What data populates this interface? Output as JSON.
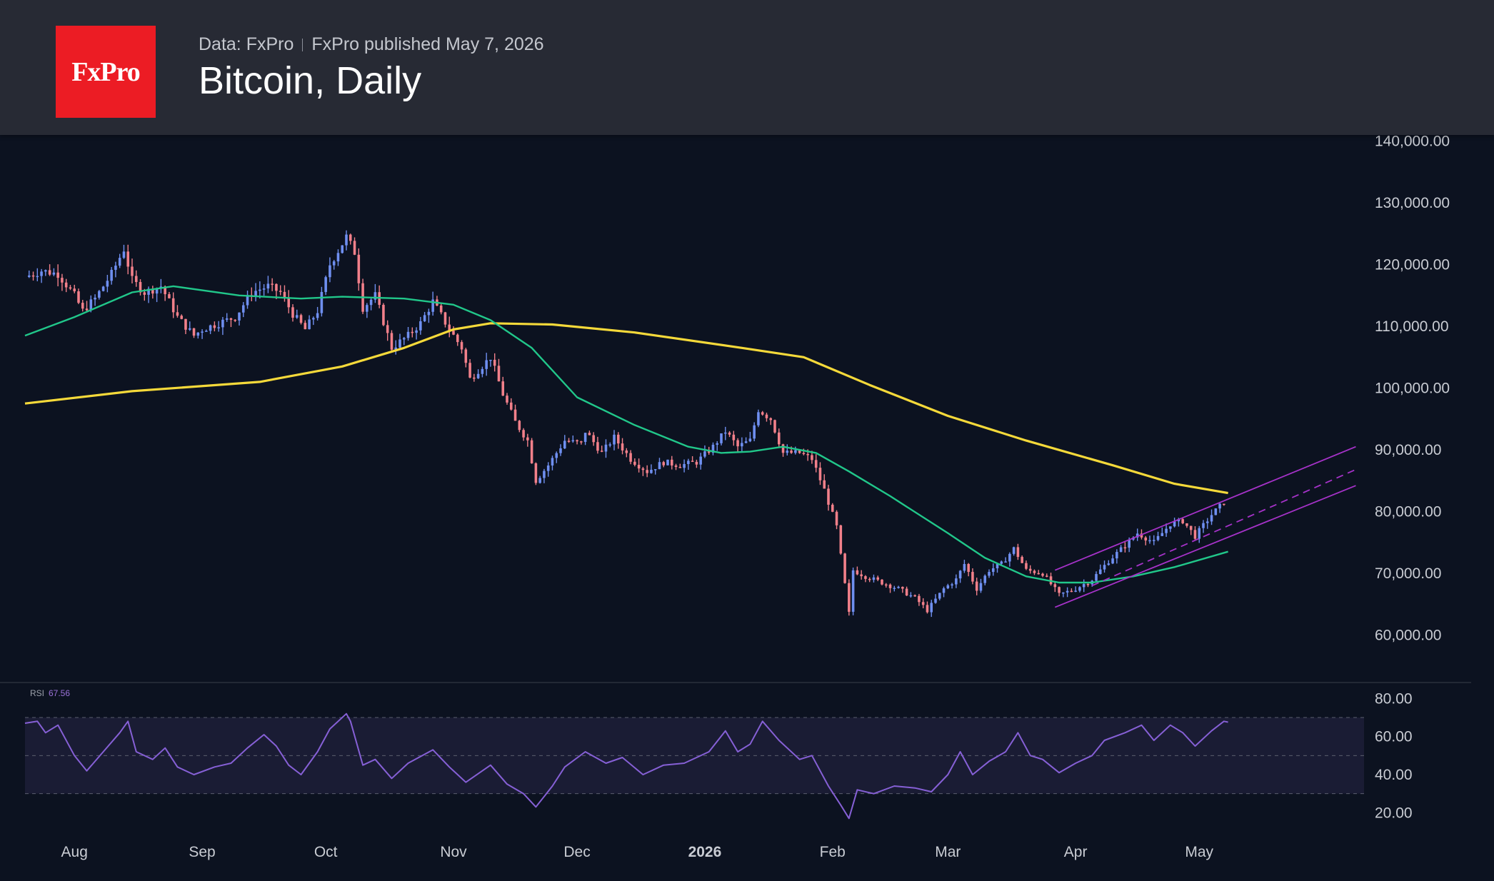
{
  "header": {
    "source": "Data: FxPro",
    "published": "FxPro published May 7, 2026",
    "title": "Bitcoin, Daily",
    "logo_text": "FxPro",
    "logo_color": "#ec1c24"
  },
  "chart_data": [
    {
      "type": "candlestick",
      "title": "Bitcoin, Daily",
      "x_range": [
        "2025-07-20",
        "2026-06-10"
      ],
      "ylim": [
        53000,
        141000
      ],
      "y_ticks": [
        "60,000.00",
        "70,000.00",
        "80,000.00",
        "90,000.00",
        "100,000.00",
        "110,000.00",
        "120,000.00",
        "130,000.00",
        "140,000.00"
      ],
      "y_tick_values": [
        60000,
        70000,
        80000,
        90000,
        100000,
        110000,
        120000,
        130000,
        140000
      ],
      "x_ticks": [
        {
          "label": "Aug",
          "date": "2025-08-01"
        },
        {
          "label": "Sep",
          "date": "2025-09-01"
        },
        {
          "label": "Oct",
          "date": "2025-10-01"
        },
        {
          "label": "Nov",
          "date": "2025-11-01"
        },
        {
          "label": "Dec",
          "date": "2025-12-01"
        },
        {
          "label": "2026",
          "date": "2026-01-01",
          "bold": true
        },
        {
          "label": "Feb",
          "date": "2026-02-01"
        },
        {
          "label": "Mar",
          "date": "2026-03-01"
        },
        {
          "label": "Apr",
          "date": "2026-04-01"
        },
        {
          "label": "May",
          "date": "2026-05-01"
        }
      ],
      "colors": {
        "up": "#6f8ff0",
        "down": "#f2808a",
        "ma_fast": "#21c78a",
        "ma_slow": "#f5d93a",
        "channel": "#a632c9"
      },
      "close_anchors": [
        [
          "2025-07-20",
          118000
        ],
        [
          "2025-07-24",
          119000
        ],
        [
          "2025-07-28",
          118500
        ],
        [
          "2025-08-01",
          115000
        ],
        [
          "2025-08-03",
          112500
        ],
        [
          "2025-08-06",
          114500
        ],
        [
          "2025-08-10",
          118500
        ],
        [
          "2025-08-13",
          122500
        ],
        [
          "2025-08-15",
          117500
        ],
        [
          "2025-08-18",
          115500
        ],
        [
          "2025-08-22",
          116500
        ],
        [
          "2025-08-26",
          111500
        ],
        [
          "2025-08-30",
          108500
        ],
        [
          "2025-09-01",
          109500
        ],
        [
          "2025-09-05",
          110500
        ],
        [
          "2025-09-09",
          111500
        ],
        [
          "2025-09-13",
          115500
        ],
        [
          "2025-09-17",
          116500
        ],
        [
          "2025-09-20",
          115500
        ],
        [
          "2025-09-23",
          112000
        ],
        [
          "2025-09-26",
          109500
        ],
        [
          "2025-09-29",
          112500
        ],
        [
          "2025-10-02",
          120000
        ],
        [
          "2025-10-06",
          124500
        ],
        [
          "2025-10-08",
          122000
        ],
        [
          "2025-10-10",
          113000
        ],
        [
          "2025-10-13",
          115000
        ],
        [
          "2025-10-17",
          106500
        ],
        [
          "2025-10-21",
          108500
        ],
        [
          "2025-10-24",
          110500
        ],
        [
          "2025-10-27",
          114000
        ],
        [
          "2025-10-31",
          109500
        ],
        [
          "2025-11-03",
          106500
        ],
        [
          "2025-11-05",
          101500
        ],
        [
          "2025-11-10",
          105000
        ],
        [
          "2025-11-13",
          99000
        ],
        [
          "2025-11-16",
          94500
        ],
        [
          "2025-11-19",
          91500
        ],
        [
          "2025-11-21",
          85000
        ],
        [
          "2025-11-24",
          87500
        ],
        [
          "2025-11-28",
          91500
        ],
        [
          "2025-12-02",
          91000
        ],
        [
          "2025-12-03",
          93000
        ],
        [
          "2025-12-07",
          89500
        ],
        [
          "2025-12-10",
          92000
        ],
        [
          "2025-12-14",
          88500
        ],
        [
          "2025-12-18",
          86500
        ],
        [
          "2025-12-22",
          88000
        ],
        [
          "2025-12-26",
          87500
        ],
        [
          "2025-12-30",
          88000
        ],
        [
          "2026-01-03",
          90500
        ],
        [
          "2026-01-06",
          93000
        ],
        [
          "2026-01-09",
          90500
        ],
        [
          "2026-01-12",
          91500
        ],
        [
          "2026-01-14",
          96500
        ],
        [
          "2026-01-17",
          95000
        ],
        [
          "2026-01-20",
          89500
        ],
        [
          "2026-01-24",
          89500
        ],
        [
          "2026-01-27",
          88500
        ],
        [
          "2026-01-30",
          83500
        ],
        [
          "2026-02-02",
          77500
        ],
        [
          "2026-02-05",
          63500
        ],
        [
          "2026-02-06",
          70500
        ],
        [
          "2026-02-09",
          69500
        ],
        [
          "2026-02-13",
          68500
        ],
        [
          "2026-02-17",
          67500
        ],
        [
          "2026-02-21",
          66000
        ],
        [
          "2026-02-24",
          64000
        ],
        [
          "2026-02-28",
          67500
        ],
        [
          "2026-03-03",
          69000
        ],
        [
          "2026-03-05",
          71500
        ],
        [
          "2026-03-08",
          67500
        ],
        [
          "2026-03-11",
          70500
        ],
        [
          "2026-03-14",
          71500
        ],
        [
          "2026-03-17",
          74000
        ],
        [
          "2026-03-20",
          70500
        ],
        [
          "2026-03-24",
          70000
        ],
        [
          "2026-03-28",
          66500
        ],
        [
          "2026-04-01",
          67500
        ],
        [
          "2026-04-05",
          69000
        ],
        [
          "2026-04-09",
          72000
        ],
        [
          "2026-04-13",
          74500
        ],
        [
          "2026-04-16",
          76500
        ],
        [
          "2026-04-20",
          75000
        ],
        [
          "2026-04-24",
          78000
        ],
        [
          "2026-04-27",
          78500
        ],
        [
          "2026-04-30",
          76000
        ],
        [
          "2026-05-04",
          79500
        ],
        [
          "2026-05-07",
          81500
        ]
      ],
      "ma_fast_points": [
        [
          "2025-07-20",
          108500
        ],
        [
          "2025-08-01",
          111500
        ],
        [
          "2025-08-15",
          115500
        ],
        [
          "2025-08-25",
          116500
        ],
        [
          "2025-09-10",
          115000
        ],
        [
          "2025-09-25",
          114500
        ],
        [
          "2025-10-05",
          114800
        ],
        [
          "2025-10-20",
          114500
        ],
        [
          "2025-11-01",
          113500
        ],
        [
          "2025-11-10",
          111000
        ],
        [
          "2025-11-20",
          106500
        ],
        [
          "2025-12-01",
          98500
        ],
        [
          "2025-12-15",
          94000
        ],
        [
          "2025-12-28",
          90500
        ],
        [
          "2026-01-05",
          89500
        ],
        [
          "2026-01-12",
          89700
        ],
        [
          "2026-01-20",
          90500
        ],
        [
          "2026-01-28",
          89500
        ],
        [
          "2026-02-05",
          86500
        ],
        [
          "2026-02-15",
          82500
        ],
        [
          "2026-03-01",
          76500
        ],
        [
          "2026-03-10",
          72500
        ],
        [
          "2026-03-20",
          69500
        ],
        [
          "2026-03-28",
          68500
        ],
        [
          "2026-04-05",
          68500
        ],
        [
          "2026-04-15",
          69500
        ],
        [
          "2026-04-25",
          71000
        ],
        [
          "2026-05-08",
          73500
        ]
      ],
      "ma_slow_points": [
        [
          "2025-07-20",
          97500
        ],
        [
          "2025-08-15",
          99500
        ],
        [
          "2025-09-15",
          101000
        ],
        [
          "2025-10-05",
          103500
        ],
        [
          "2025-10-20",
          106500
        ],
        [
          "2025-11-01",
          109500
        ],
        [
          "2025-11-10",
          110500
        ],
        [
          "2025-11-25",
          110300
        ],
        [
          "2025-12-15",
          109000
        ],
        [
          "2026-01-10",
          106500
        ],
        [
          "2026-01-25",
          105000
        ],
        [
          "2026-02-10",
          100500
        ],
        [
          "2026-03-01",
          95500
        ],
        [
          "2026-03-20",
          91500
        ],
        [
          "2026-04-10",
          87500
        ],
        [
          "2026-04-25",
          84500
        ],
        [
          "2026-05-08",
          83000
        ]
      ],
      "channel_lines": [
        {
          "style": "solid",
          "from": [
            "2026-03-27",
            70500
          ],
          "to": [
            "2026-06-08",
            90500
          ]
        },
        {
          "style": "dashed",
          "from": [
            "2026-04-05",
            68000
          ],
          "to": [
            "2026-06-08",
            86800
          ]
        },
        {
          "style": "solid",
          "from": [
            "2026-03-27",
            64500
          ],
          "to": [
            "2026-06-08",
            84200
          ]
        }
      ]
    },
    {
      "type": "line",
      "series_name": "RSI",
      "last_value": "67.56",
      "ylim": [
        10,
        85
      ],
      "y_ticks": [
        "20.00",
        "40.00",
        "60.00",
        "80.00"
      ],
      "y_tick_values": [
        20,
        40,
        60,
        80
      ],
      "band": [
        30,
        70
      ],
      "midline": 50,
      "colors": {
        "line": "#8660d6",
        "band_fill": "#1a1c34",
        "band_line": "#5a5e6e"
      },
      "points": [
        [
          "2025-07-20",
          67
        ],
        [
          "2025-07-23",
          68
        ],
        [
          "2025-07-25",
          62
        ],
        [
          "2025-07-28",
          66
        ],
        [
          "2025-08-01",
          50
        ],
        [
          "2025-08-04",
          42
        ],
        [
          "2025-08-08",
          52
        ],
        [
          "2025-08-12",
          62
        ],
        [
          "2025-08-14",
          68
        ],
        [
          "2025-08-16",
          52
        ],
        [
          "2025-08-20",
          48
        ],
        [
          "2025-08-23",
          54
        ],
        [
          "2025-08-26",
          44
        ],
        [
          "2025-08-30",
          40
        ],
        [
          "2025-09-04",
          44
        ],
        [
          "2025-09-08",
          46
        ],
        [
          "2025-09-12",
          54
        ],
        [
          "2025-09-16",
          61
        ],
        [
          "2025-09-19",
          55
        ],
        [
          "2025-09-22",
          45
        ],
        [
          "2025-09-25",
          40
        ],
        [
          "2025-09-29",
          52
        ],
        [
          "2025-10-02",
          64
        ],
        [
          "2025-10-06",
          72
        ],
        [
          "2025-10-07",
          68
        ],
        [
          "2025-10-10",
          45
        ],
        [
          "2025-10-13",
          48
        ],
        [
          "2025-10-17",
          38
        ],
        [
          "2025-10-21",
          46
        ],
        [
          "2025-10-27",
          53
        ],
        [
          "2025-10-31",
          44
        ],
        [
          "2025-11-04",
          36
        ],
        [
          "2025-11-10",
          45
        ],
        [
          "2025-11-14",
          35
        ],
        [
          "2025-11-18",
          30
        ],
        [
          "2025-11-21",
          23
        ],
        [
          "2025-11-25",
          34
        ],
        [
          "2025-11-28",
          44
        ],
        [
          "2025-12-03",
          52
        ],
        [
          "2025-12-08",
          46
        ],
        [
          "2025-12-12",
          49
        ],
        [
          "2025-12-17",
          40
        ],
        [
          "2025-12-22",
          45
        ],
        [
          "2025-12-27",
          46
        ],
        [
          "2026-01-02",
          52
        ],
        [
          "2026-01-06",
          63
        ],
        [
          "2026-01-09",
          52
        ],
        [
          "2026-01-12",
          56
        ],
        [
          "2026-01-15",
          68
        ],
        [
          "2026-01-19",
          58
        ],
        [
          "2026-01-24",
          48
        ],
        [
          "2026-01-27",
          50
        ],
        [
          "2026-01-31",
          34
        ],
        [
          "2026-02-03",
          24
        ],
        [
          "2026-02-05",
          17
        ],
        [
          "2026-02-07",
          32
        ],
        [
          "2026-02-11",
          30
        ],
        [
          "2026-02-16",
          34
        ],
        [
          "2026-02-21",
          33
        ],
        [
          "2026-02-25",
          31
        ],
        [
          "2026-03-01",
          40
        ],
        [
          "2026-03-04",
          52
        ],
        [
          "2026-03-07",
          40
        ],
        [
          "2026-03-11",
          47
        ],
        [
          "2026-03-15",
          52
        ],
        [
          "2026-03-18",
          62
        ],
        [
          "2026-03-21",
          50
        ],
        [
          "2026-03-24",
          48
        ],
        [
          "2026-03-28",
          41
        ],
        [
          "2026-04-01",
          46
        ],
        [
          "2026-04-05",
          50
        ],
        [
          "2026-04-08",
          58
        ],
        [
          "2026-04-13",
          62
        ],
        [
          "2026-04-17",
          66
        ],
        [
          "2026-04-20",
          58
        ],
        [
          "2026-04-24",
          66
        ],
        [
          "2026-04-27",
          62
        ],
        [
          "2026-04-30",
          55
        ],
        [
          "2026-05-04",
          63
        ],
        [
          "2026-05-07",
          68
        ],
        [
          "2026-05-08",
          67.56
        ]
      ]
    }
  ]
}
